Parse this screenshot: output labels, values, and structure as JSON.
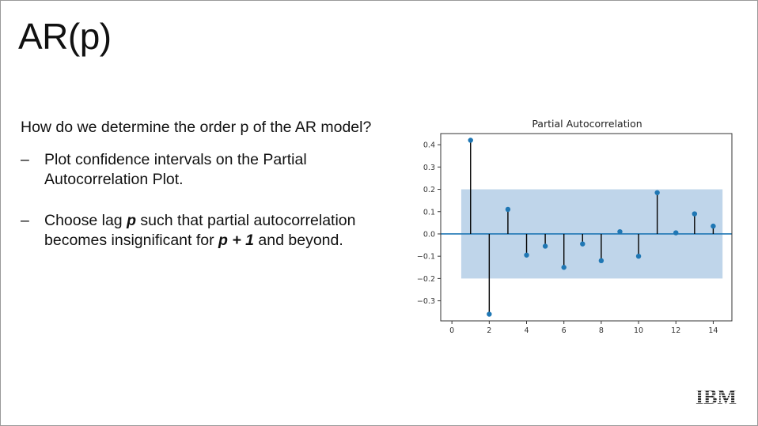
{
  "slide": {
    "title": "AR(p)",
    "question": "How do we determine the order p of the AR model?",
    "bullets": [
      {
        "dash": "–",
        "text": "Plot confidence intervals on the Partial Autocorrelation Plot."
      },
      {
        "dash": "–",
        "pre": "Choose lag ",
        "p1": "p",
        "mid": " such that partial autocorrelation becomes insignificant for ",
        "p2": "p + 1",
        "post": " and beyond."
      }
    ],
    "logo_text": "IBM"
  },
  "chart_data": {
    "type": "stem",
    "title": "Partial Autocorrelation",
    "xlabel": "",
    "ylabel": "",
    "x": [
      1,
      2,
      3,
      4,
      5,
      6,
      7,
      8,
      9,
      10,
      11,
      12,
      13,
      14
    ],
    "values": [
      0.42,
      -0.36,
      0.11,
      -0.095,
      -0.055,
      -0.15,
      -0.045,
      -0.12,
      0.01,
      -0.1,
      0.185,
      0.005,
      0.09,
      0.035
    ],
    "confidence_band": [
      -0.2,
      0.2
    ],
    "xlim": [
      -0.6,
      15.0
    ],
    "ylim": [
      -0.39,
      0.45
    ],
    "xticks": [
      0,
      2,
      4,
      6,
      8,
      10,
      12,
      14
    ],
    "yticks": [
      -0.3,
      -0.2,
      -0.1,
      0.0,
      0.1,
      0.2,
      0.3,
      0.4
    ],
    "ytick_labels": [
      "−0.3",
      "−0.2",
      "−0.1",
      "0.0",
      "0.1",
      "0.2",
      "0.3",
      "0.4"
    ],
    "colors": {
      "marker": "#1f77b4",
      "stem": "#000000",
      "band": "#a9c7e3",
      "zero_line": "#1f77b4"
    }
  }
}
